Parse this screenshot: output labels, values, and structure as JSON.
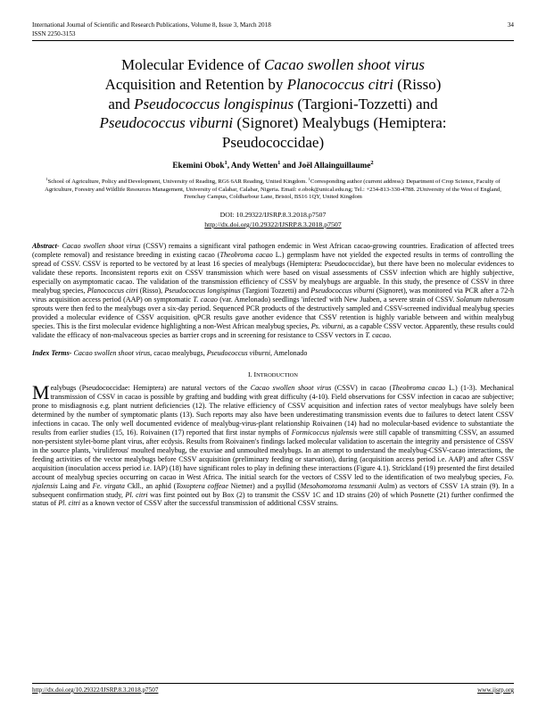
{
  "header": {
    "journal": "International Journal of Scientific and Research Publications, Volume 8, Issue 3, March 2018",
    "page": "34",
    "issn": "ISSN 2250-3153"
  },
  "title_lines": [
    "Molecular Evidence of <em class='sp'>Cacao swollen shoot virus</em>",
    "Acquisition and Retention by <em class='sp'>Planococcus citri</em> (Risso)",
    "and <em class='sp'>Pseudococcus longispinus</em> (Targioni-Tozzetti) and",
    "<em class='sp'>Pseudococcus viburni</em> (Signoret) Mealybugs (Hemiptera:",
    "Pseudococcidae)"
  ],
  "authors": "Ekemini Obok<sup>1</sup>, Andy Wetten<sup>1</sup> and Joël Allainguillaume<sup>2</sup>",
  "affil": "<sup>1</sup>School of Agriculture, Policy and Development, University of Reading, RG6 6AR Reading, United Kingdom. <sup>1</sup>Corresponding author (current address): Department of Crop Science, Faculty of Agriculture, Forestry and Wildlife Resources Management, University of Calabar, Calabar, Nigeria. Email: e.obok@unical.edu.ng; Tel.: +234-813-330-4788. 2University of the West of England, Frenchay Campus, Coldharbour Lane, Bristol, BS16 1QY, United Kingdom",
  "doi": "DOI: 10.29322/IJSRP.8.3.2018.p7507",
  "doi_url": "http://dx.doi.org/10.29322/IJSRP.8.3.2018.p7507",
  "abstract_label": "Abstract-",
  "abstract": " <em class='sp'>Cacao swollen shoot virus</em> (CSSV) remains a significant viral pathogen endemic in West African cacao-growing countries. Eradication of affected trees (complete removal) and resistance breeding in existing cacao (<em class='sp'>Theobroma cacao</em> L.) germplasm have not yielded the expected results in terms of controlling the spread of CSSV. CSSV is reported to be vectored by at least 16 species of mealybugs (Hemiptera: Pseudococcidae), but there have been no molecular evidences to validate these reports. Inconsistent reports exit on CSSV transmission which were based on visual assessments of CSSV infection which are highly subjective, especially on asymptomatic cacao. The validation of the transmission efficiency of CSSV by mealybugs are arguable. In this study, the presence of CSSV in three mealybug species, <em class='sp'>Planococcus citri</em> (Risso), <em class='sp'>Pseudococcus longispinus</em> (Targioni Tozzetti) and <em class='sp'>Pseudococcus viburni</em> (Signoret), was monitored via PCR after a 72-h virus acquisition access period (AAP) on symptomatic <em class='sp'>T. cacao</em> (var. Amelonado) seedlings 'infected' with New Juaben, a severe strain of CSSV. <em class='sp'>Solanum tuberosum</em> sprouts were then fed to the mealybugs over a six-day period. Sequenced PCR products of the destructively sampled and CSSV-screened individual mealybug species provided a molecular evidence of CSSV acquisition. qPCR results gave another evidence that CSSV retention is highly variable between and within mealybug species. This is the first molecular evidence highlighting a non-West African mealybug species, <em class='sp'>Ps. viburni</em>, as a capable CSSV vector. Apparently, these results could validate the efficacy of non-malvaceous species as barrier crops and in screening for resistance to CSSV vectors in <em class='sp'>T. cacao</em>.",
  "index_label": "Index Terms-",
  "index_terms": " <em class='sp'>Cacao swollen shoot virus</em>, cacao mealybugs, <em class='sp'>Pseudococcus viburni</em>, Amelonado",
  "section1": "I.    I<small>NTRODUCTION</small>",
  "body": "ealybugs (Pseudococcidae: Hemiptera) are natural vectors of the <em class='sp'>Cacao swollen shoot virus</em> (CSSV) in cacao (<em class='sp'>Theobroma cacao</em> L.) (1-3). Mechanical transmission of CSSV in cacao is possible by grafting and budding with great difficulty (4-10). Field observations for CSSV infection in cacao are subjective; prone to misdiagnosis e.g. plant nutrient deficiencies (12). The relative efficiency of CSSV acquisition and infection rates of vector mealybugs have solely been determined by the number of symptomatic plants (13). Such reports may also have been underestimating transmission events due to failures to detect latent CSSV infections in cacao. The only well documented evidence of mealybug-virus-plant relationship Roivainen (14) had no molecular-based evidence to substantiate the results from earlier studies (15, 16). Roivainen (17) reported that first instar nymphs of <em class='sp'>Formicoccus njalensis</em> were still capable of transmitting CSSV, an assumed non-persistent stylet-borne plant virus, after ecdysis. Results from Roivainen's findings lacked molecular validation to ascertain the integrity and persistence of CSSV in the source plants, 'viruliferous' moulted mealybug, the exuviae and unmoulted mealybugs. In an attempt to understand the mealybug-CSSV-cacao interactions, the feeding activities of the vector mealybugs before CSSV acquisition (preliminary feeding or starvation), during (acquisition access period i.e. AAP) and after CSSV acquisition (inoculation access period i.e. IAP) (18) have significant roles to play in defining these interactions (Figure 4.1). Strickland (19) presented the first detailed account of mealybug species occurring on cacao in West Africa. The initial search for the vectors of CSSV led to the identification of two mealybug species, <em class='sp'>Fo. njalensis</em> Laing and <em class='sp'>Fe. virgata</em> Ckll., an aphid (<em class='sp'>Toxoptera coffeae</em> Nietner) and a psyllid (<em class='sp'>Mesohomotoma tessmanii</em> Aulm) as vectors of CSSV 1A strain (9). In a subsequent confirmation study, <em class='sp'>Pl. citri</em> was first pointed out by Box (2) to transmit the CSSV 1C and 1D strains (20) of which Posnette (21) further confirmed the status of <em class='sp'>Pl. citri</em> as a known vector of CSSV after the successful transmission of additional CSSV strains.",
  "footer": {
    "left": "http://dx.doi.org/10.29322/IJSRP.8.3.2018.p7507",
    "right": "www.ijsrp.org"
  }
}
